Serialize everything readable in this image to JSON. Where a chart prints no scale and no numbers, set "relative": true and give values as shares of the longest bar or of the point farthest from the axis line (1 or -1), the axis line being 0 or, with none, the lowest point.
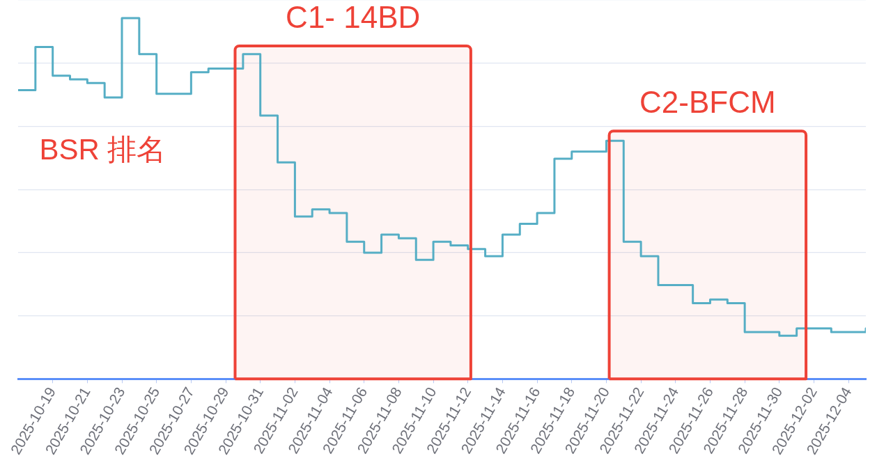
{
  "chart_data": {
    "type": "step",
    "x": [
      "2025-10-17",
      "2025-10-18",
      "2025-10-19",
      "2025-10-20",
      "2025-10-21",
      "2025-10-22",
      "2025-10-23",
      "2025-10-24",
      "2025-10-25",
      "2025-10-26",
      "2025-10-27",
      "2025-10-28",
      "2025-10-29",
      "2025-10-30",
      "2025-10-31",
      "2025-11-01",
      "2025-11-02",
      "2025-11-03",
      "2025-11-04",
      "2025-11-05",
      "2025-11-06",
      "2025-11-07",
      "2025-11-08",
      "2025-11-09",
      "2025-11-10",
      "2025-11-11",
      "2025-11-12",
      "2025-11-13",
      "2025-11-14",
      "2025-11-15",
      "2025-11-16",
      "2025-11-17",
      "2025-11-18",
      "2025-11-19",
      "2025-11-20",
      "2025-11-21",
      "2025-11-22",
      "2025-11-23",
      "2025-11-24",
      "2025-11-25",
      "2025-11-26",
      "2025-11-27",
      "2025-11-28",
      "2025-11-29",
      "2025-11-30",
      "2025-12-01",
      "2025-12-02",
      "2025-12-03",
      "2025-12-04",
      "2025-12-05"
    ],
    "values": [
      0.8,
      0.92,
      0.84,
      0.83,
      0.82,
      0.78,
      1,
      0.9,
      0.79,
      0.79,
      0.85,
      0.86,
      0.86,
      0.9,
      0.73,
      0.6,
      0.45,
      0.47,
      0.46,
      0.38,
      0.35,
      0.4,
      0.39,
      0.33,
      0.38,
      0.37,
      0.36,
      0.34,
      0.4,
      0.43,
      0.46,
      0.61,
      0.63,
      0.63,
      0.66,
      0.38,
      0.34,
      0.26,
      0.26,
      0.21,
      0.22,
      0.21,
      0.13,
      0.13,
      0.12,
      0.14,
      0.14,
      0.13,
      0.13,
      0.14
    ],
    "color": "#56aec5",
    "relative": true,
    "xlim": [
      "2025-10-17",
      "2025-12-05"
    ],
    "xticks": [
      "2025-10-19",
      "2025-10-21",
      "2025-10-23",
      "2025-10-25",
      "2025-10-27",
      "2025-10-29",
      "2025-10-31",
      "2025-11-02",
      "2025-11-04",
      "2025-11-06",
      "2025-11-08",
      "2025-11-10",
      "2025-11-12",
      "2025-11-14",
      "2025-11-16",
      "2025-11-18",
      "2025-11-20",
      "2025-11-22",
      "2025-11-24",
      "2025-11-26",
      "2025-11-28",
      "2025-11-30",
      "2025-12-02",
      "2025-12-04"
    ],
    "bands": [
      {
        "axis": "x",
        "from": "2025-10-29T13:00",
        "to": "2025-11-12T04:00",
        "label": "C1- 14BD",
        "color": "#ee4237"
      },
      {
        "axis": "x",
        "from": "2025-11-20T04:00",
        "to": "2025-12-01T13:00",
        "label": "C2-BFCM",
        "color": "#ee4237"
      }
    ],
    "annotations": [
      "BSR 排名"
    ],
    "grid": "y",
    "legend": false,
    "tick_labels": "x",
    "marker": "none"
  }
}
